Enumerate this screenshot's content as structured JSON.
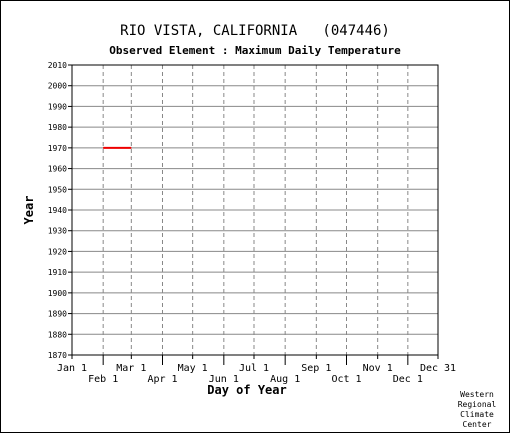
{
  "chart_data": {
    "type": "line",
    "title": "RIO VISTA, CALIFORNIA   (047446)",
    "subtitle": "Observed Element : Maximum Daily Temperature",
    "xlabel": "Day of Year",
    "ylabel": "Year",
    "ylim": [
      1870,
      2010
    ],
    "y_ticks": [
      1870,
      1880,
      1890,
      1900,
      1910,
      1920,
      1930,
      1940,
      1950,
      1960,
      1970,
      1980,
      1990,
      2000,
      2010
    ],
    "x_ticks_upper": [
      "Jan 1",
      "Mar 1",
      "May 1",
      "Jul 1",
      "Sep 1",
      "Nov 1",
      "Dec 31"
    ],
    "x_ticks_lower": [
      "Feb 1",
      "Apr 1",
      "Jun 1",
      "Aug 1",
      "Oct 1",
      "Dec 1"
    ],
    "grid": true,
    "series": [
      {
        "year": 1970,
        "start": "Feb 1",
        "end": "Mar 1",
        "color": "#ee0000"
      }
    ]
  },
  "credit": [
    "Western",
    "Regional",
    "Climate",
    "Center"
  ]
}
